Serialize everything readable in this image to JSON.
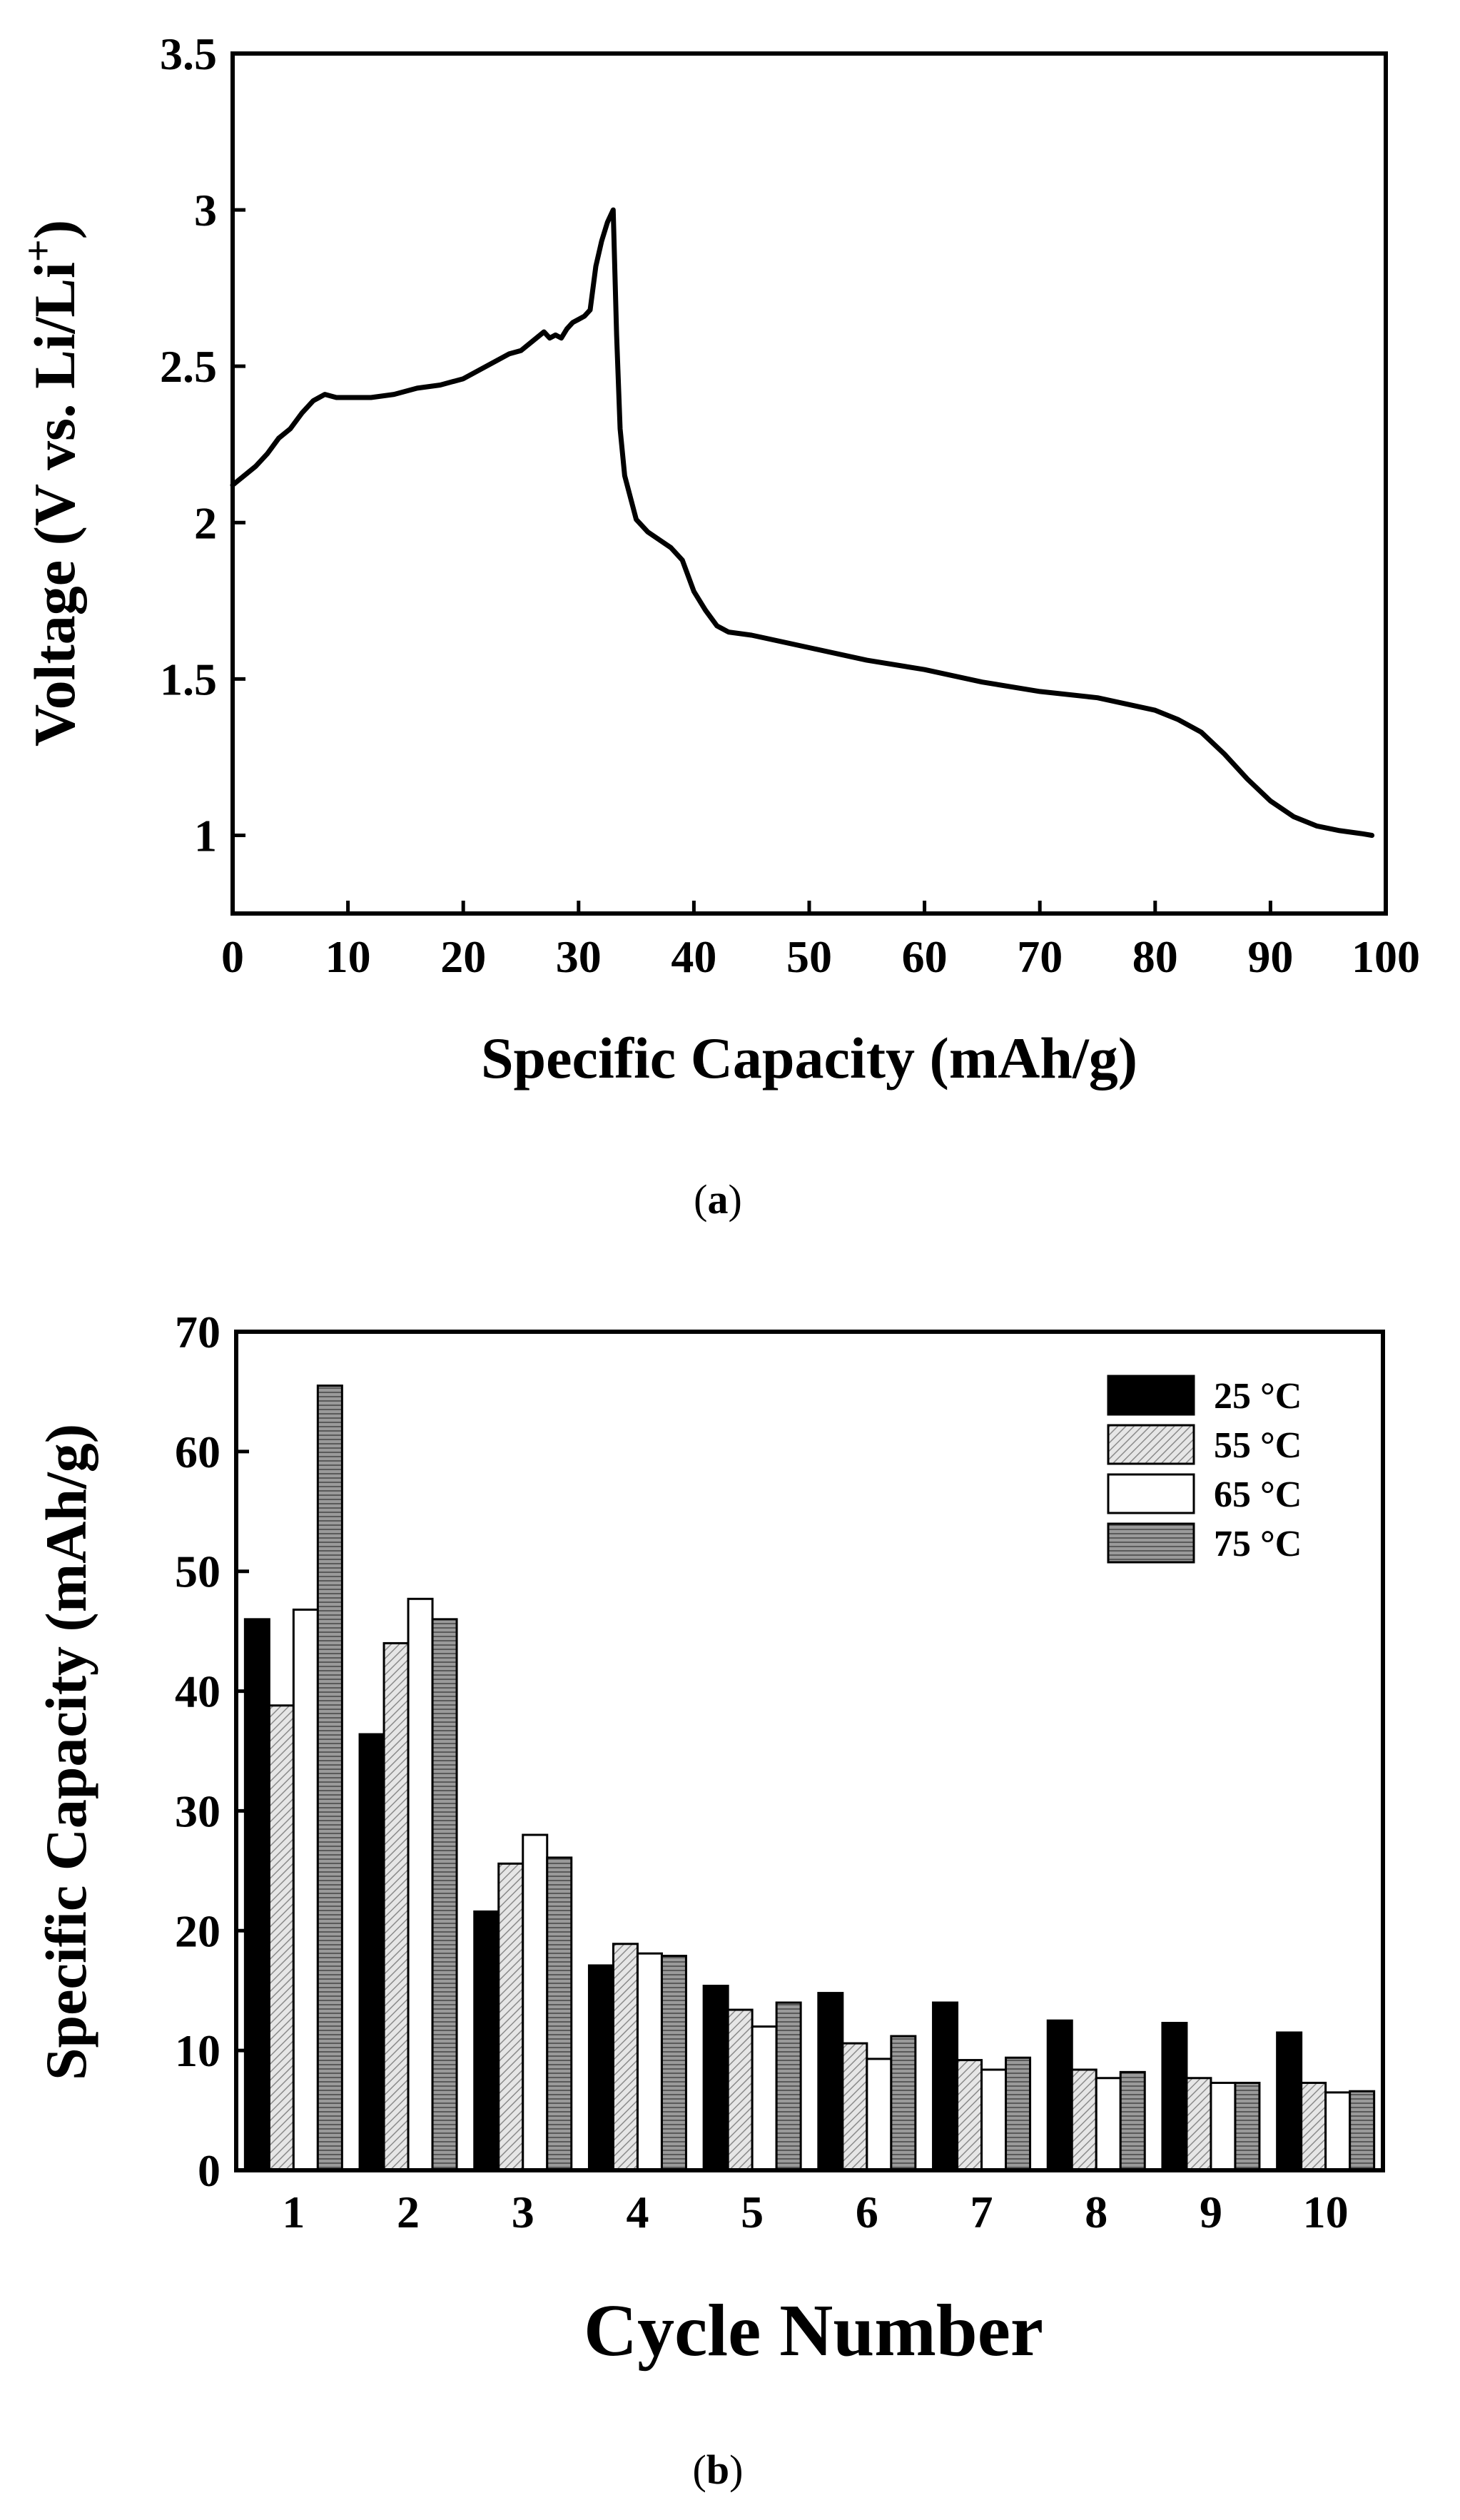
{
  "chart_data": [
    {
      "type": "line",
      "panel": "a",
      "caption_letter": "a",
      "xlabel": "Specific Capacity (mAh/g)",
      "ylabel_main": "Voltage (V vs. Li/Li",
      "ylabel_sup": "+",
      "ylabel_close": ")",
      "xlim": [
        0,
        100
      ],
      "ylim": [
        0.75,
        3.5
      ],
      "xticks": [
        0,
        10,
        20,
        30,
        40,
        50,
        60,
        70,
        80,
        90,
        100
      ],
      "yticks": [
        1.0,
        1.5,
        2.0,
        2.5,
        3.0,
        3.5
      ],
      "x": [
        0,
        1,
        2,
        3,
        4,
        5,
        6,
        7,
        7.5,
        8,
        9,
        10,
        12,
        14,
        16,
        18,
        20,
        22,
        24,
        25,
        26,
        27,
        27.5,
        28,
        28.5,
        29,
        29.5,
        30,
        30.5,
        31,
        31.5,
        32,
        32.5,
        33,
        33.3,
        33.6,
        34,
        35,
        36,
        38,
        39,
        40,
        41,
        42,
        43,
        45,
        50,
        55,
        60,
        65,
        70,
        75,
        80,
        82,
        84,
        86,
        88,
        90,
        92,
        94,
        96,
        98,
        98.8
      ],
      "y": [
        2.12,
        2.15,
        2.18,
        2.22,
        2.27,
        2.3,
        2.35,
        2.39,
        2.4,
        2.41,
        2.4,
        2.4,
        2.4,
        2.41,
        2.43,
        2.44,
        2.46,
        2.5,
        2.54,
        2.55,
        2.58,
        2.61,
        2.59,
        2.6,
        2.59,
        2.62,
        2.64,
        2.65,
        2.66,
        2.68,
        2.82,
        2.9,
        2.96,
        3.0,
        2.6,
        2.3,
        2.15,
        2.01,
        1.97,
        1.92,
        1.88,
        1.78,
        1.72,
        1.67,
        1.65,
        1.64,
        1.6,
        1.56,
        1.53,
        1.49,
        1.46,
        1.44,
        1.4,
        1.37,
        1.33,
        1.26,
        1.18,
        1.11,
        1.06,
        1.03,
        1.015,
        1.005,
        1.0
      ]
    },
    {
      "type": "bar",
      "panel": "b",
      "caption_letter": "b",
      "xlabel": "Cycle Number",
      "ylabel": "Specific Capacity (mAh/g)",
      "ylim": [
        0,
        70
      ],
      "yticks": [
        0,
        10,
        20,
        30,
        40,
        50,
        60,
        70
      ],
      "categories": [
        "1",
        "2",
        "3",
        "4",
        "5",
        "6",
        "7",
        "8",
        "9",
        "10"
      ],
      "legend_position": "top-right",
      "series": [
        {
          "name": "25 °C",
          "fill": "#000000",
          "values": [
            46.0,
            36.4,
            21.6,
            17.1,
            15.4,
            14.8,
            14.0,
            12.5,
            12.3,
            11.5
          ]
        },
        {
          "name": "55 °C",
          "fill": "#bdbdbd",
          "values": [
            38.8,
            44.0,
            25.6,
            18.9,
            13.4,
            10.6,
            9.2,
            8.4,
            7.7,
            7.3
          ]
        },
        {
          "name": "65 °C",
          "fill": "#ffffff",
          "values": [
            46.8,
            47.7,
            28.0,
            18.1,
            12.0,
            9.3,
            8.4,
            7.7,
            7.3,
            6.5
          ]
        },
        {
          "name": "75 °C",
          "fill": "#8c8c8c",
          "values": [
            65.5,
            46.0,
            26.1,
            17.9,
            14.0,
            11.2,
            9.4,
            8.2,
            7.3,
            6.6
          ]
        }
      ]
    }
  ]
}
